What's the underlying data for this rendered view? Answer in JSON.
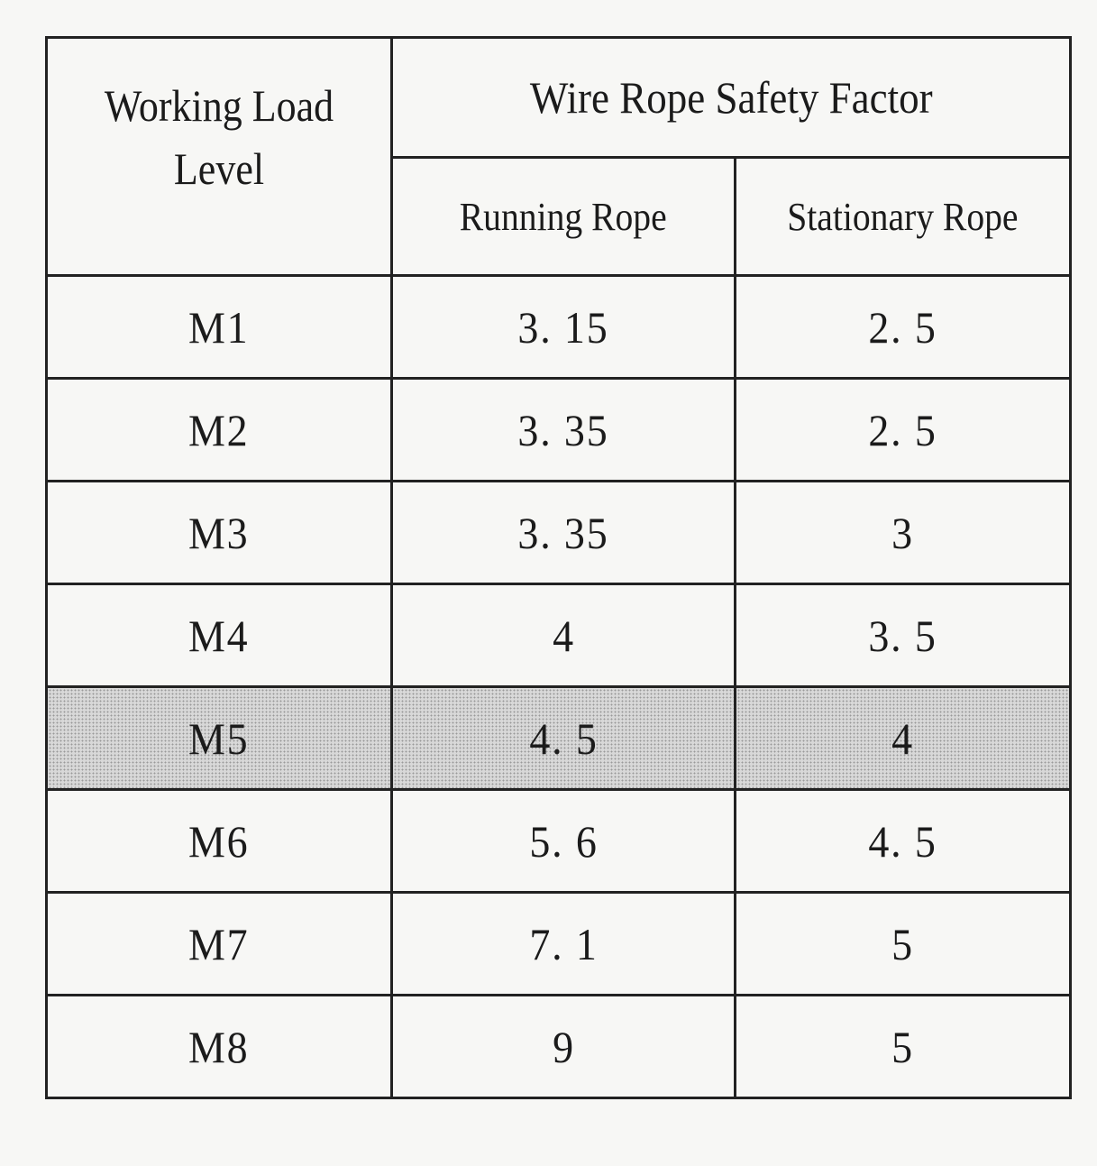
{
  "table": {
    "header": {
      "level_label": "Working Load Level",
      "group_label": "Wire Rope Safety Factor",
      "running_label": "Running Rope",
      "stationary_label": "Stationary Rope"
    },
    "rows": [
      {
        "level": "M1",
        "running": "3. 15",
        "stationary": "2. 5",
        "highlighted": false
      },
      {
        "level": "M2",
        "running": "3. 35",
        "stationary": "2. 5",
        "highlighted": false
      },
      {
        "level": "M3",
        "running": "3. 35",
        "stationary": "3",
        "highlighted": false
      },
      {
        "level": "M4",
        "running": "4",
        "stationary": "3. 5",
        "highlighted": false
      },
      {
        "level": "M5",
        "running": "4. 5",
        "stationary": "4",
        "highlighted": true
      },
      {
        "level": "M6",
        "running": "5. 6",
        "stationary": "4. 5",
        "highlighted": false
      },
      {
        "level": "M7",
        "running": "7. 1",
        "stationary": "5",
        "highlighted": false
      },
      {
        "level": "M8",
        "running": "9",
        "stationary": "5",
        "highlighted": false
      }
    ],
    "colors": {
      "border": "#222222",
      "highlight_fill": "#d8d8d8",
      "background": "#f7f7f5"
    }
  }
}
